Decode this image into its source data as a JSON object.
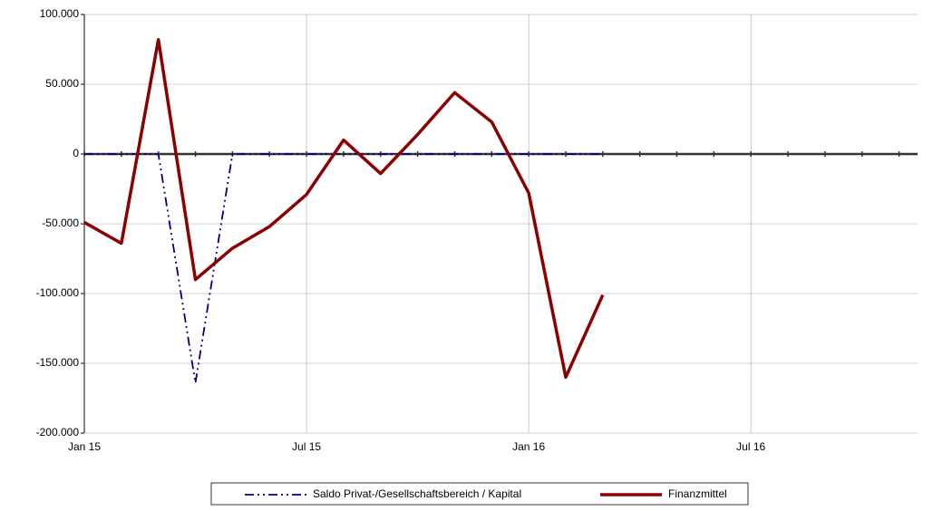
{
  "chart_data": {
    "type": "line",
    "categories": [
      "Jan 15",
      null,
      null,
      null,
      null,
      null,
      "Jul 15",
      null,
      null,
      null,
      null,
      null,
      "Jan 16",
      null,
      null,
      null,
      null,
      null,
      "Jul 16",
      null,
      null,
      null,
      null
    ],
    "series": [
      {
        "name": "Saldo Privat-/Gesellschaftsbereich / Kapital",
        "color": "#000080",
        "dash": "10,4,2,4,2,4",
        "values": [
          0,
          0,
          0,
          -164000,
          0,
          0,
          0,
          0,
          0,
          0,
          0,
          0,
          0,
          0,
          0,
          null,
          null,
          null,
          null,
          null,
          null,
          null,
          null
        ]
      },
      {
        "name": "Finanzmittel",
        "color": "#8b0000",
        "values": [
          -49000,
          -64000,
          82000,
          -90000,
          -67500,
          -52000,
          -29000,
          10000,
          -14000,
          14000,
          44000,
          23000,
          -28000,
          -160000,
          -101000,
          null,
          null,
          null,
          null,
          null,
          null,
          null,
          null
        ]
      }
    ],
    "ylim": [
      -200000,
      100000
    ],
    "yticks": [
      {
        "value": -200000,
        "label": "-200.000"
      },
      {
        "value": -150000,
        "label": "-150.000"
      },
      {
        "value": -100000,
        "label": "-100.000"
      },
      {
        "value": -50000,
        "label": "-50.000"
      },
      0,
      {
        "value": 50000,
        "label": "50.000"
      },
      {
        "value": 100000,
        "label": "100.000"
      }
    ],
    "grid": true
  }
}
